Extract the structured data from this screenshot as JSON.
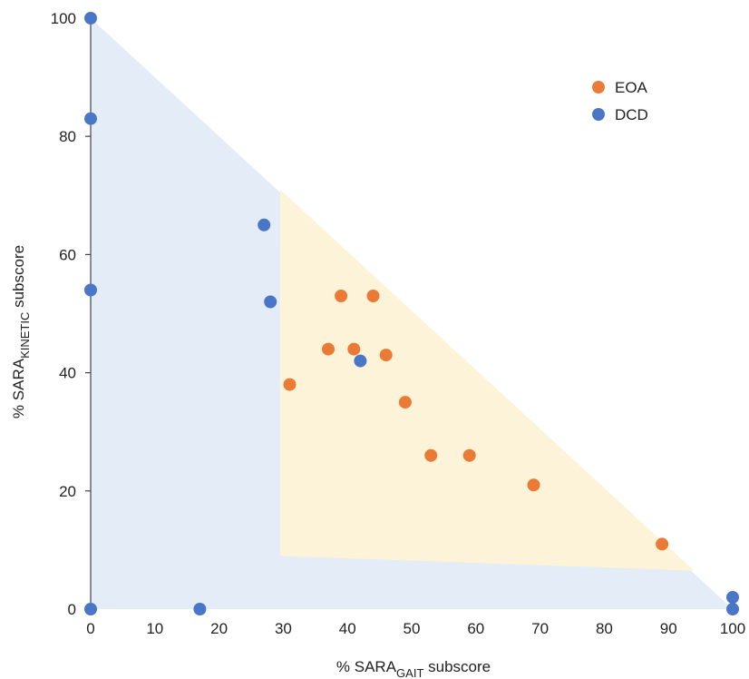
{
  "chart_data": {
    "type": "scatter",
    "title": "",
    "xlabel": {
      "prefix": "% SARA",
      "sub": "GAIT",
      "suffix": " subscore"
    },
    "ylabel": {
      "prefix": "% SARA",
      "sub": "KINETIC",
      "suffix": " subscore"
    },
    "xlim": [
      0,
      100
    ],
    "ylim": [
      0,
      100
    ],
    "x_ticks": [
      0,
      10,
      20,
      30,
      40,
      50,
      60,
      70,
      80,
      90,
      100
    ],
    "y_ticks": [
      0,
      20,
      40,
      60,
      80,
      100
    ],
    "grid": false,
    "legend_position": "top-right",
    "regions": [
      {
        "label": "DCD region",
        "color": "#e3ecf7",
        "polygon": [
          [
            0,
            100
          ],
          [
            0,
            0
          ],
          [
            100,
            0
          ]
        ]
      },
      {
        "label": "EOA region",
        "color": "#fdf3d8",
        "polygon": [
          [
            29.5,
            71
          ],
          [
            29.5,
            9
          ],
          [
            94,
            6.5
          ]
        ]
      }
    ],
    "series": [
      {
        "name": "EOA",
        "color": "#ea7a35",
        "points": [
          [
            31,
            38
          ],
          [
            37,
            44
          ],
          [
            39,
            53
          ],
          [
            41,
            44
          ],
          [
            44,
            53
          ],
          [
            46,
            43
          ],
          [
            49,
            35
          ],
          [
            53,
            26
          ],
          [
            59,
            26
          ],
          [
            69,
            21
          ],
          [
            89,
            11
          ]
        ]
      },
      {
        "name": "DCD",
        "color": "#4a76c8",
        "points": [
          [
            0,
            100
          ],
          [
            0,
            83
          ],
          [
            0,
            54
          ],
          [
            0,
            0
          ],
          [
            17,
            0
          ],
          [
            27,
            65
          ],
          [
            28,
            52
          ],
          [
            42,
            42
          ],
          [
            100,
            2
          ],
          [
            100,
            0
          ]
        ]
      }
    ]
  }
}
